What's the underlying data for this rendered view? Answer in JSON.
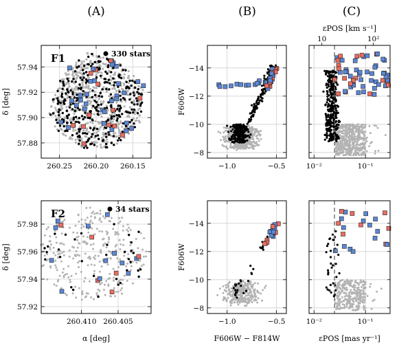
{
  "colors": {
    "gray_points": "#b3b3b3",
    "black_points": "#000000",
    "blue_squares": "#5b87d6",
    "red_squares": "#ec6c5f",
    "grid": "#d0d0d0",
    "dashed_line": "#666666"
  },
  "chart_data": [
    {
      "id": "F1-A",
      "type": "scatter",
      "column_title": "(A)",
      "panel_label": "F1",
      "legend": "330 stars",
      "xlabel": "",
      "ylabel": "δ [deg]",
      "xlim": [
        260.275,
        260.125
      ],
      "ylim": [
        57.868,
        57.957
      ],
      "xticks": [
        260.25,
        260.2,
        260.15
      ],
      "xtick_labels": [
        "260.25",
        "260.20",
        "260.15"
      ],
      "yticks": [
        57.88,
        57.9,
        57.92,
        57.94
      ],
      "ytick_labels": [
        "57.88",
        "57.90",
        "57.92",
        "57.94"
      ],
      "grid": true
    },
    {
      "id": "F1-B",
      "type": "scatter",
      "column_title": "(B)",
      "xlabel": "",
      "ylabel": "F606W",
      "xlim": [
        -1.2,
        -0.4
      ],
      "ylim": [
        -7.6,
        -15.6
      ],
      "xticks": [
        -1.0,
        -0.5
      ],
      "xtick_labels": [
        "−1.0",
        "−0.5"
      ],
      "yticks": [
        -8,
        -10,
        -12,
        -14
      ],
      "ytick_labels": [
        "−8",
        "−10",
        "−12",
        "−14"
      ],
      "grid": true
    },
    {
      "id": "F1-C",
      "type": "scatter",
      "column_title": "(C)",
      "top_xlabel": "εPOS [km s⁻¹]",
      "top_xticks": [
        10,
        100
      ],
      "top_xtick_labels": [
        "10",
        "10²"
      ],
      "xscale": "log",
      "xlim": [
        0.008,
        0.3
      ],
      "ylim": [
        -7.6,
        -15.6
      ],
      "xticks": [
        0.01,
        0.1
      ],
      "xtick_labels": [
        "10⁻²",
        "10⁻¹"
      ],
      "dashed_x": 0.025,
      "grid": true
    },
    {
      "id": "F2-A",
      "type": "scatter",
      "panel_label": "F2",
      "legend": "34 stars",
      "xlabel": "α [deg]",
      "ylabel": "δ [deg]",
      "xlim": [
        260.4155,
        260.4005
      ],
      "ylim": [
        57.915,
        57.997
      ],
      "xticks": [
        260.41,
        260.405
      ],
      "xtick_labels": [
        "260.410",
        "260.405"
      ],
      "yticks": [
        57.92,
        57.94,
        57.96,
        57.98
      ],
      "ytick_labels": [
        "57.92",
        "57.94",
        "57.96",
        "57.98"
      ],
      "grid": true
    },
    {
      "id": "F2-B",
      "type": "scatter",
      "xlabel": "F606W − F814W",
      "ylabel": "F606W",
      "xlim": [
        -1.2,
        -0.4
      ],
      "ylim": [
        -7.6,
        -15.6
      ],
      "xticks": [
        -1.0,
        -0.5
      ],
      "xtick_labels": [
        "−1.0",
        "−0.5"
      ],
      "yticks": [
        -8,
        -10,
        -12,
        -14
      ],
      "ytick_labels": [
        "−8",
        "−10",
        "−12",
        "−14"
      ],
      "grid": true
    },
    {
      "id": "F2-C",
      "type": "scatter",
      "xlabel": "εPOS [mas yr⁻¹]",
      "xscale": "log",
      "xlim": [
        0.008,
        0.3
      ],
      "ylim": [
        -7.6,
        -15.6
      ],
      "xticks": [
        0.01,
        0.1
      ],
      "xtick_labels": [
        "10⁻²",
        "10⁻¹"
      ],
      "dashed_x": 0.025,
      "grid": true
    }
  ]
}
